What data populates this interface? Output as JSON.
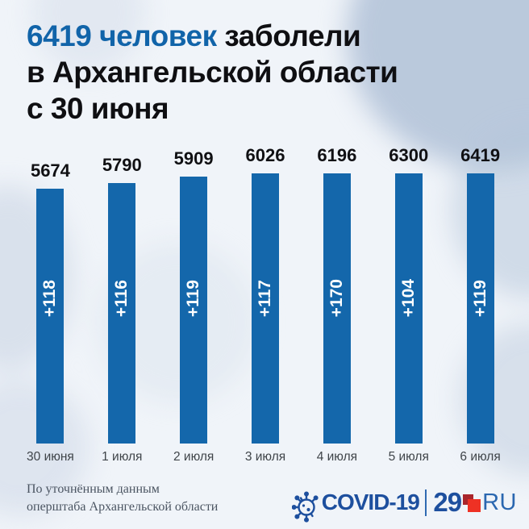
{
  "title": {
    "highlight": "6419 человек",
    "rest": "заболели",
    "line2": "в Архангельской области",
    "line3": "с 30 июня",
    "highlight_color": "#1164a9",
    "text_color": "#0f0f12"
  },
  "chart_data": {
    "type": "bar",
    "title": "6419 человек заболели в Архангельской области с 30 июня",
    "categories": [
      "30 июня",
      "1 июля",
      "2 июля",
      "3 июля",
      "4 июля",
      "5 июля",
      "6 июля"
    ],
    "values": [
      5674,
      5790,
      5909,
      6026,
      6196,
      6300,
      6419
    ],
    "deltas": [
      "+118",
      "+116",
      "+119",
      "+117",
      "+170",
      "+104",
      "+119"
    ],
    "bar_color": "#1467ab",
    "value_label_color": "#101013",
    "delta_label_color": "#ffffff",
    "xlabel": "",
    "ylabel": "",
    "grid": false,
    "legend": "none"
  },
  "footer": {
    "source_line1": "По уточнённым данным",
    "source_line2": "оперштаба Архангельской области",
    "logo": {
      "icon_name": "virus-icon",
      "covid_text": "COVID-19",
      "separator_glyph": "|",
      "site_number": "29",
      "site_suffix": "RU",
      "blue": "#1d4f9e",
      "red_bright": "#ee3124",
      "red_dark": "#a9262c"
    }
  }
}
